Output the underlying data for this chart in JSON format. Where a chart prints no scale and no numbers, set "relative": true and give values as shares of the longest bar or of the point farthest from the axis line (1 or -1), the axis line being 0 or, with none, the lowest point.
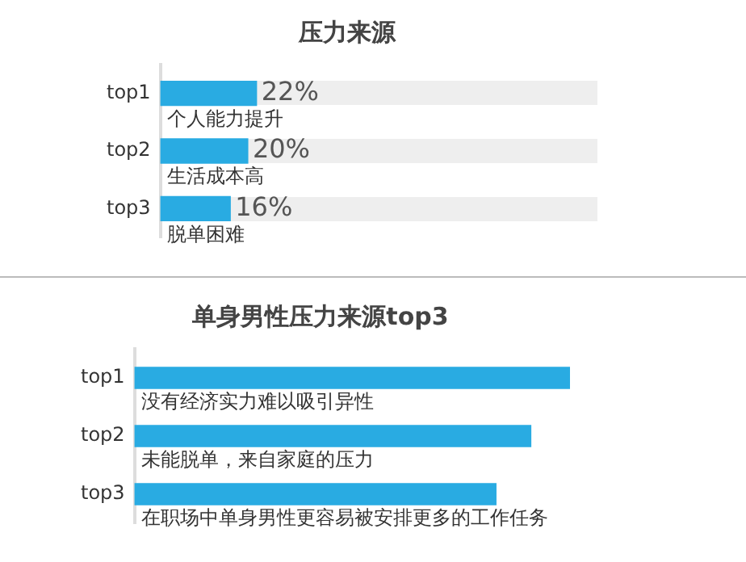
{
  "chart_data": [
    {
      "type": "bar",
      "title": "压力来源",
      "orientation": "horizontal",
      "categories": [
        "top1",
        "top2",
        "top3"
      ],
      "series": [
        {
          "color": "#29abe2",
          "values": [
            22,
            20,
            16
          ],
          "value_labels": [
            "22%",
            "20%",
            "16%"
          ]
        }
      ],
      "xlim": [
        0,
        100
      ],
      "tick_labels": "y",
      "annotations": [
        "个人能力提升",
        "生活成本高",
        "脱单困难"
      ]
    },
    {
      "type": "bar",
      "title": "单身男性压力来源top3",
      "orientation": "horizontal",
      "relative": true,
      "categories": [
        "top1",
        "top2",
        "top3"
      ],
      "series": [
        {
          "color": "#29abe2",
          "values": [
            1,
            0.91,
            0.83
          ]
        }
      ],
      "tick_labels": "y",
      "annotations": [
        "没有经济实力难以吸引异性",
        "未能脱单，来自家庭的压力",
        "在职场中单身男性更容易被安排更多的工作任务"
      ]
    }
  ]
}
